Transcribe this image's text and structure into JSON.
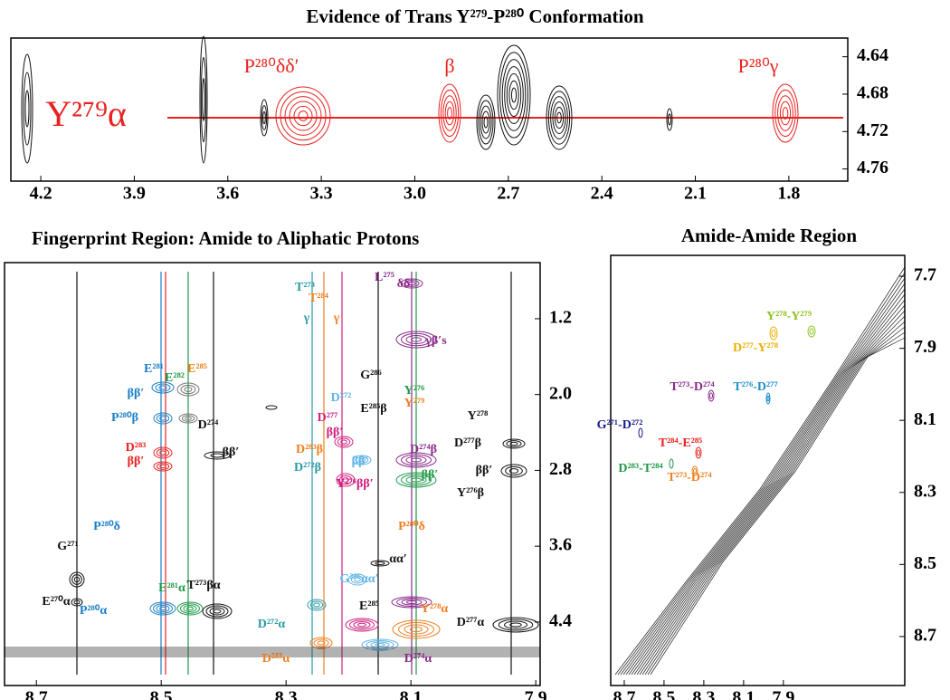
{
  "chart_data": [
    {
      "type": "contour",
      "title": "Evidence of Trans Y²⁷⁹-P²⁸⁰ Conformation",
      "xlim": [
        4.296,
        1.611
      ],
      "xticks": [
        4.2,
        3.9,
        3.6,
        3.3,
        {
          "value": 3,
          "label": "3.0"
        },
        2.7,
        2.4,
        2.1,
        1.8
      ],
      "ylim": [
        4.62,
        4.773
      ],
      "yticks": [
        4.64,
        4.68,
        4.72,
        4.76
      ],
      "annotations": [
        {
          "text": "Y²⁷⁹α",
          "color": "#e8231f"
        },
        {
          "text": "P²⁸⁰δδ′",
          "color": "#e8231f"
        },
        {
          "text": "β",
          "color": "#e8231f"
        },
        {
          "text": "P²⁸⁰γ",
          "color": "#e8231f"
        }
      ]
    },
    {
      "type": "contour",
      "title": "Fingerprint Region:  Amide to Aliphatic Protons",
      "xlim": [
        8.751,
        7.893
      ],
      "xticks": [
        8.7,
        8.5,
        8.3,
        8.1,
        7.9
      ],
      "ylim": [
        0.608,
        5.07
      ],
      "yticks": [
        1.2,
        {
          "value": 2,
          "label": "2.0"
        },
        2.8,
        3.6,
        4.4
      ],
      "annotations": [
        {
          "text": "T²⁷³",
          "color": "#2a9aa6"
        },
        {
          "text": "T²⁸⁴",
          "color": "#f07f1e"
        },
        {
          "text": "L²⁷⁵",
          "color": "#8b2a8b"
        },
        {
          "text": "δδ′",
          "color": "#8b2a8b"
        },
        {
          "text": "γ",
          "color": "#2a9aa6"
        },
        {
          "text": "γ",
          "color": "#f07f1e"
        },
        {
          "text": "γβ′s",
          "color": "#8b2a8b"
        },
        {
          "text": "E²⁸¹",
          "color": "#1a7fc8"
        },
        {
          "text": "E²⁸²",
          "color": "#1f9a48"
        },
        {
          "text": "E²⁸⁵",
          "color": "#f07f1e"
        },
        {
          "text": "ββ′",
          "color": "#1a7fc8"
        },
        {
          "text": "P²⁸⁰β",
          "color": "#1a7fc8"
        },
        {
          "text": "D²⁷⁴",
          "color": "#111111"
        },
        {
          "text": "D²⁸³",
          "color": "#e8231f"
        },
        {
          "text": "ββ′",
          "color": "#e8231f"
        },
        {
          "text": "ββ′",
          "color": "#111111"
        },
        {
          "text": "G²⁸⁶",
          "color": "#111111"
        },
        {
          "text": "E²⁸⁵β",
          "color": "#111111"
        },
        {
          "text": "D²⁷²",
          "color": "#5fb4e6"
        },
        {
          "text": "Y²⁷⁶",
          "color": "#1f9a48"
        },
        {
          "text": "Y²⁷⁹",
          "color": "#f07f1e"
        },
        {
          "text": "D²⁷⁷",
          "color": "#d0207f"
        },
        {
          "text": "ββ′",
          "color": "#d0207f"
        },
        {
          "text": "D²⁸³β",
          "color": "#f07f1e"
        },
        {
          "text": "D²⁷²β",
          "color": "#2a9aa6"
        },
        {
          "text": "ββ′",
          "color": "#5fb4e6"
        },
        {
          "text": "Y²⁷⁶ββ′",
          "color": "#d0207f"
        },
        {
          "text": "D²⁷⁴β",
          "color": "#8b2a8b"
        },
        {
          "text": "ββ′",
          "color": "#1f9a48"
        },
        {
          "text": "Y²⁷⁸",
          "color": "#111111"
        },
        {
          "text": "D²⁷⁷β",
          "color": "#111111"
        },
        {
          "text": "ββ′",
          "color": "#111111"
        },
        {
          "text": "Y²⁷⁶β",
          "color": "#111111"
        },
        {
          "text": "P²⁸⁰δ",
          "color": "#1a7fc8"
        },
        {
          "text": "P²⁸⁰δ",
          "color": "#f07f1e"
        },
        {
          "text": "G²⁷¹",
          "color": "#111111"
        },
        {
          "text": "E²⁷⁰α",
          "color": "#111111"
        },
        {
          "text": "G²⁸⁶αα′",
          "color": "#5fb4e6"
        },
        {
          "text": "αα′",
          "color": "#111111"
        },
        {
          "text": "E²⁸¹α",
          "color": "#1f9a48"
        },
        {
          "text": "T²⁷³βα",
          "color": "#111111"
        },
        {
          "text": "P²⁸⁰α",
          "color": "#1a7fc8"
        },
        {
          "text": "Y²⁷⁸α",
          "color": "#f07f1e"
        },
        {
          "text": "D²⁷²α",
          "color": "#2a9aa6"
        },
        {
          "text": "D²⁸³α",
          "color": "#f07f1e"
        },
        {
          "text": "E²⁸⁵",
          "color": "#111111"
        },
        {
          "text": "D²⁷⁷α",
          "color": "#111111"
        },
        {
          "text": "D²⁷⁴α",
          "color": "#8b2a8b"
        }
      ]
    },
    {
      "type": "contour",
      "title": "Amide-Amide Region",
      "xlim": [
        8.768,
        7.29
      ],
      "xticks": [
        8.7,
        8.5,
        8.3,
        8.1,
        7.9
      ],
      "ylim": [
        7.642,
        8.836
      ],
      "yticks": [
        7.7,
        7.9,
        8.1,
        8.3,
        8.5,
        8.7
      ],
      "annotations": [
        {
          "text": "Y²⁷⁸-Y²⁷⁹",
          "color": "#8cc41c"
        },
        {
          "text": "D²⁷⁷-Y²⁷⁸",
          "color": "#e8b000"
        },
        {
          "text": "T²⁷³-D²⁷⁴",
          "color": "#8b2a8b"
        },
        {
          "text": "T²⁷⁶-D²⁷⁷",
          "color": "#2090d0"
        },
        {
          "text": "G²⁷¹-D²⁷²",
          "color": "#1a1a8c"
        },
        {
          "text": "T²⁸⁴-E²⁸⁵",
          "color": "#e8231f"
        },
        {
          "text": "D²⁸³-T²⁸⁴",
          "color": "#1f9a48"
        },
        {
          "text": "T²⁷³-D²⁷⁴",
          "color": "#f07f1e"
        }
      ]
    }
  ]
}
